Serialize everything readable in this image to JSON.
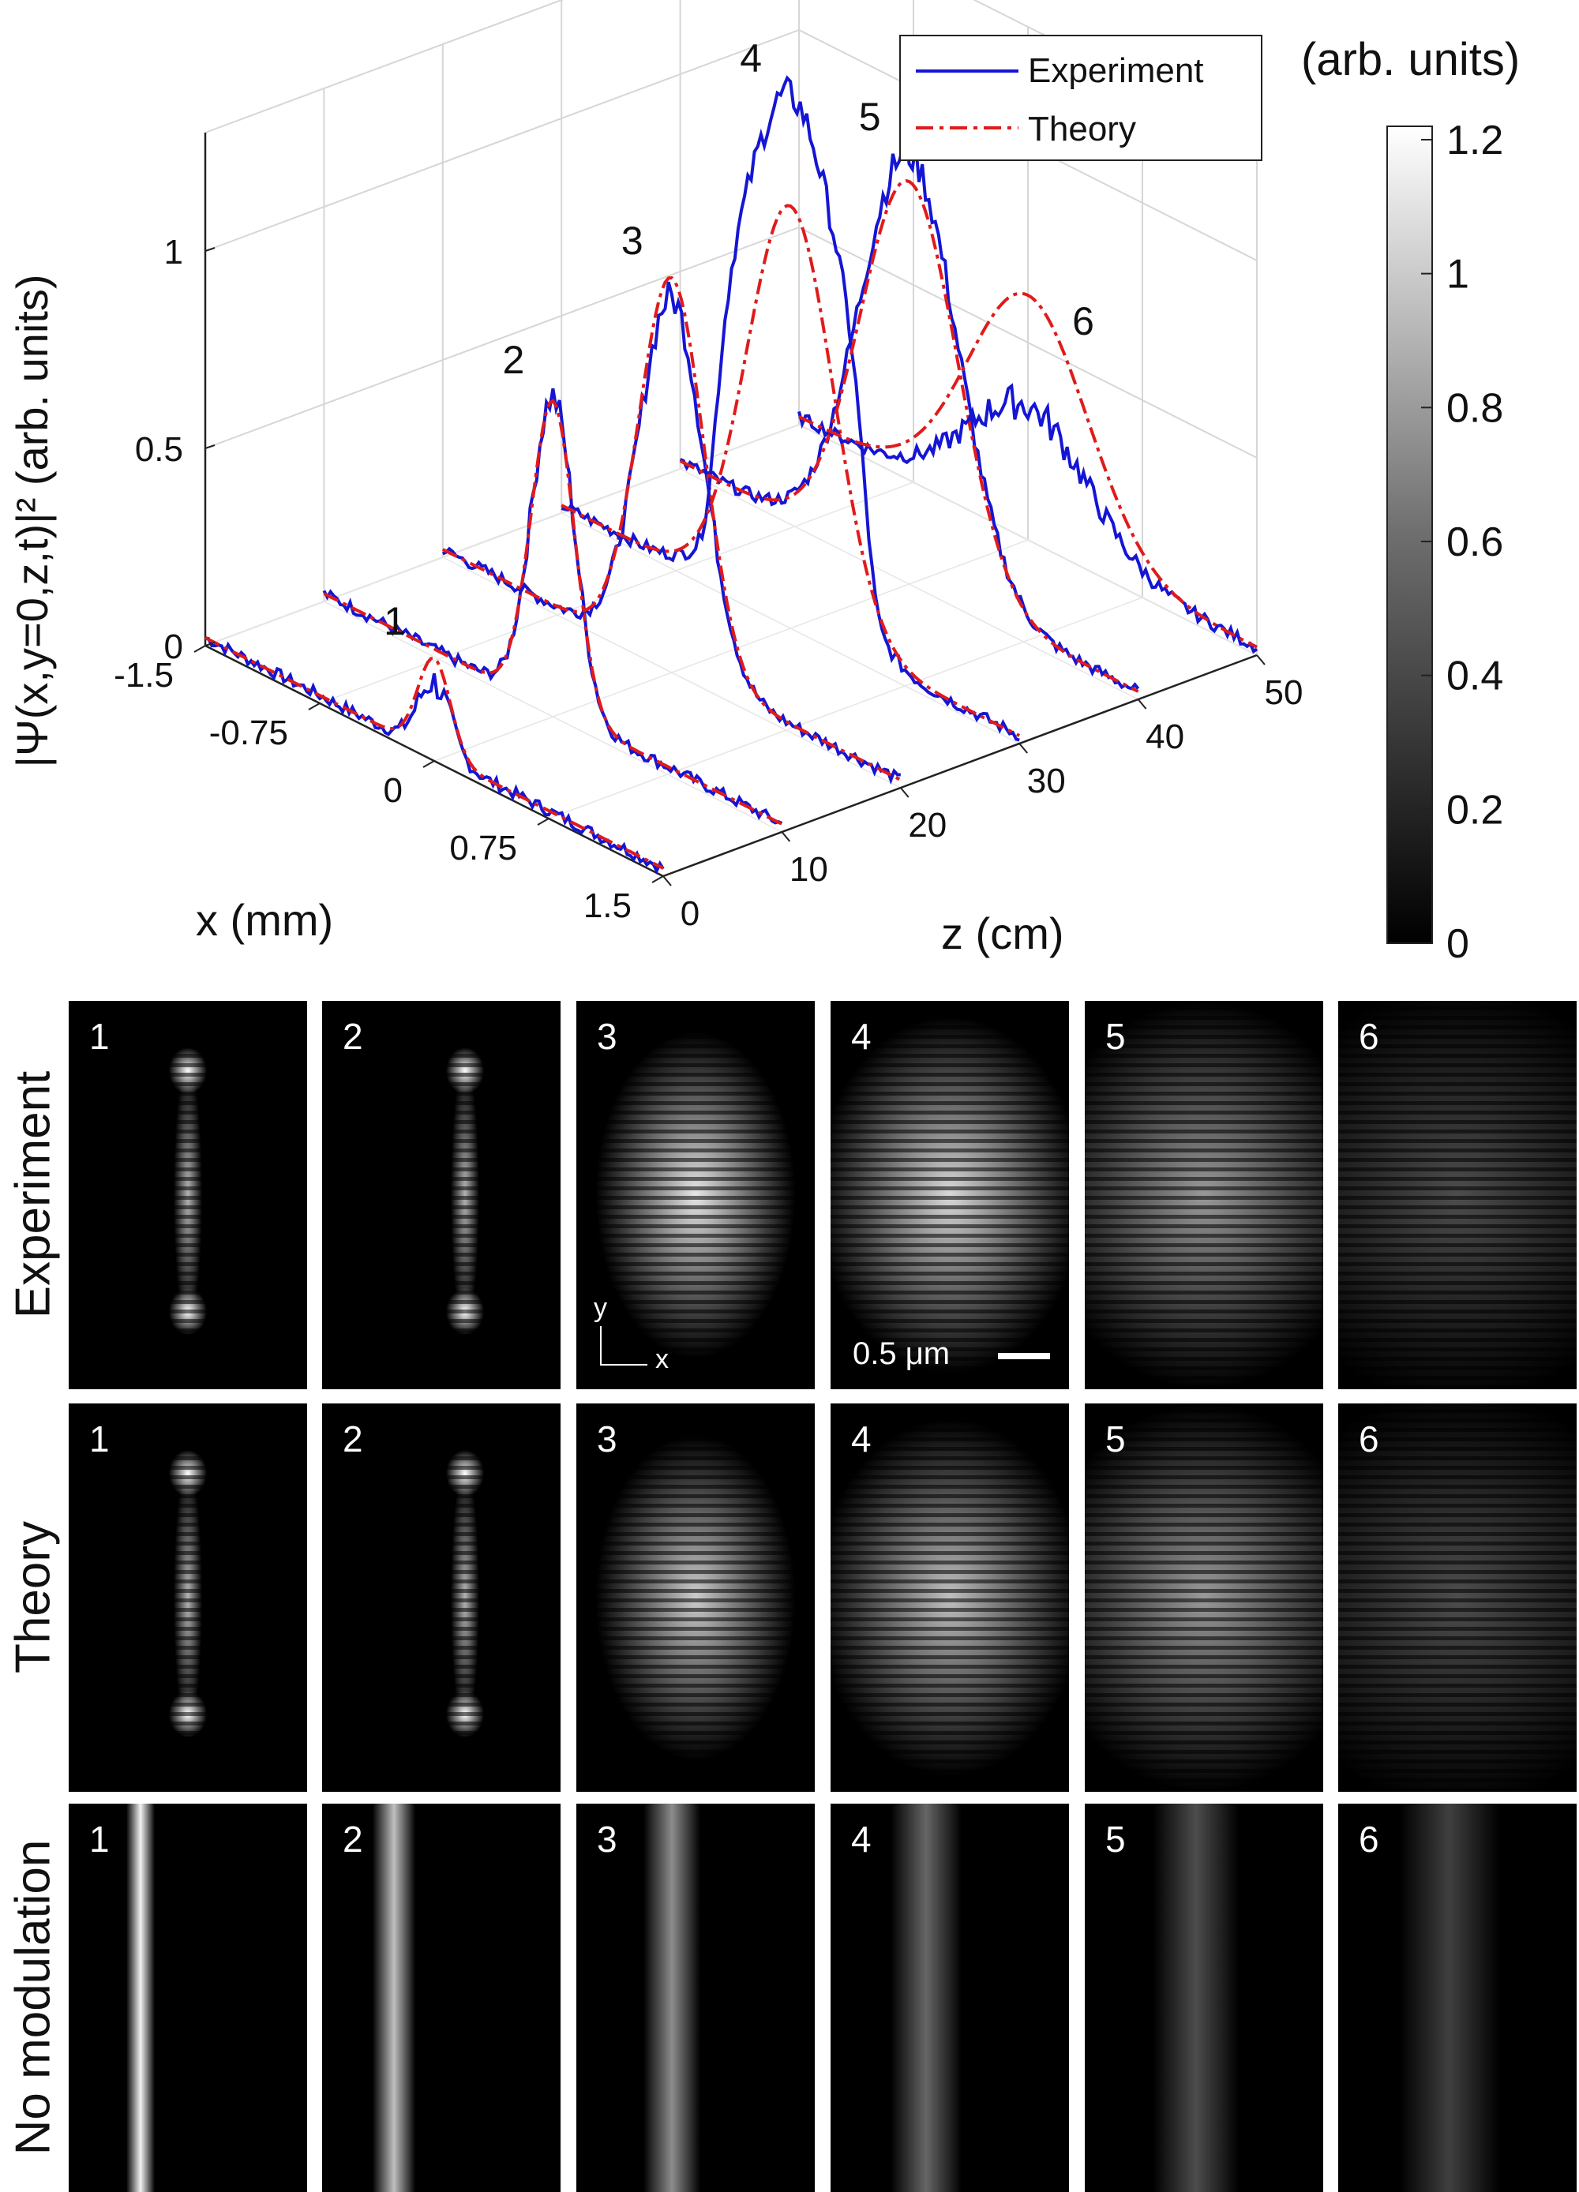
{
  "chart_data": {
    "type": "line",
    "z_label": "z (cm)",
    "x_label": "x (mm)",
    "y_label": "|Ψ(x,y=0,z,t)|² (arb. units)",
    "z_ticks": [
      "0",
      "10",
      "20",
      "30",
      "40",
      "50"
    ],
    "x_ticks": [
      "-1.5",
      "-0.75",
      "0",
      "0.75",
      "1.5"
    ],
    "y_ticks": [
      "0",
      "0.5",
      "1"
    ],
    "zlim": [
      0,
      50
    ],
    "xlim": [
      -1.5,
      1.5
    ],
    "ylim": [
      0,
      1.3
    ],
    "legend": {
      "position": "top-right",
      "experiment": "Experiment",
      "theory": "Theory"
    },
    "series_styles": {
      "experiment": "#1515d4",
      "theory": "#e01b1b"
    },
    "profiles": [
      {
        "label": "1",
        "z": 0,
        "theory_peak": 0.24,
        "experiment_peak": 0.18,
        "width": 0.15
      },
      {
        "label": "2",
        "z": 10,
        "theory_peak": 0.78,
        "experiment_peak": 0.79,
        "width": 0.2
      },
      {
        "label": "3",
        "z": 20,
        "theory_peak": 0.98,
        "experiment_peak": 0.93,
        "width": 0.3
      },
      {
        "label": "4",
        "z": 30,
        "theory_peak": 1.05,
        "experiment_peak": 1.33,
        "width": 0.4
      },
      {
        "label": "5",
        "z": 40,
        "theory_peak": 1.0,
        "experiment_peak": 1.07,
        "width": 0.45
      },
      {
        "label": "6",
        "z": 50,
        "theory_peak": 0.6,
        "experiment_peak": 0.32,
        "width": 0.55
      }
    ]
  },
  "colorbar": {
    "units_label": "(arb. units)",
    "ticks": [
      "0",
      "0.2",
      "0.4",
      "0.6",
      "0.8",
      "1",
      "1.2"
    ],
    "tick_values": [
      0,
      0.2,
      0.4,
      0.6,
      0.8,
      1.0,
      1.2
    ],
    "range": [
      0,
      1.22
    ]
  },
  "panels": {
    "rows": [
      {
        "label": "Experiment"
      },
      {
        "label": "Theory"
      },
      {
        "label": "No modulation"
      }
    ],
    "numbers": [
      "1",
      "2",
      "3",
      "4",
      "5",
      "6"
    ],
    "axis_y": "y",
    "axis_x": "x",
    "scale_bar": "0.5 μm"
  }
}
